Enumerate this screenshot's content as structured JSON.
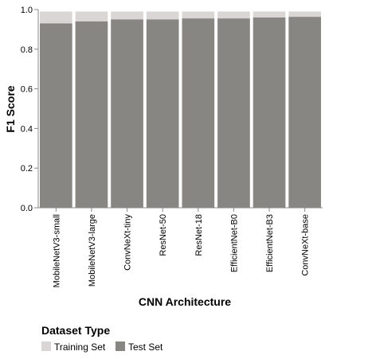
{
  "chart_data": {
    "type": "bar",
    "stacked": "overlay",
    "categories": [
      "MobileNetV3-small",
      "MobileNetV3-large",
      "ConvNeXt-tiny",
      "ResNet-50",
      "ResNet-18",
      "EfficientNet-B0",
      "EfficientNet-B3",
      "ConvNeXt-base"
    ],
    "series": [
      {
        "name": "Training Set",
        "color": "#dbd6d6",
        "values": [
          0.99,
          0.99,
          0.99,
          0.99,
          0.99,
          0.99,
          0.99,
          0.99
        ]
      },
      {
        "name": "Test Set",
        "color": "#888682",
        "values": [
          0.93,
          0.94,
          0.95,
          0.95,
          0.955,
          0.955,
          0.96,
          0.963
        ]
      }
    ],
    "xlabel": "CNN Architecture",
    "ylabel": "F1 Score",
    "ylim": [
      0,
      1
    ],
    "yticks": [
      "0.0",
      "0.2",
      "0.4",
      "0.6",
      "0.8",
      "1.0"
    ],
    "grid": false,
    "legend": {
      "title": "Dataset Type",
      "placement": "bottom-left"
    }
  }
}
